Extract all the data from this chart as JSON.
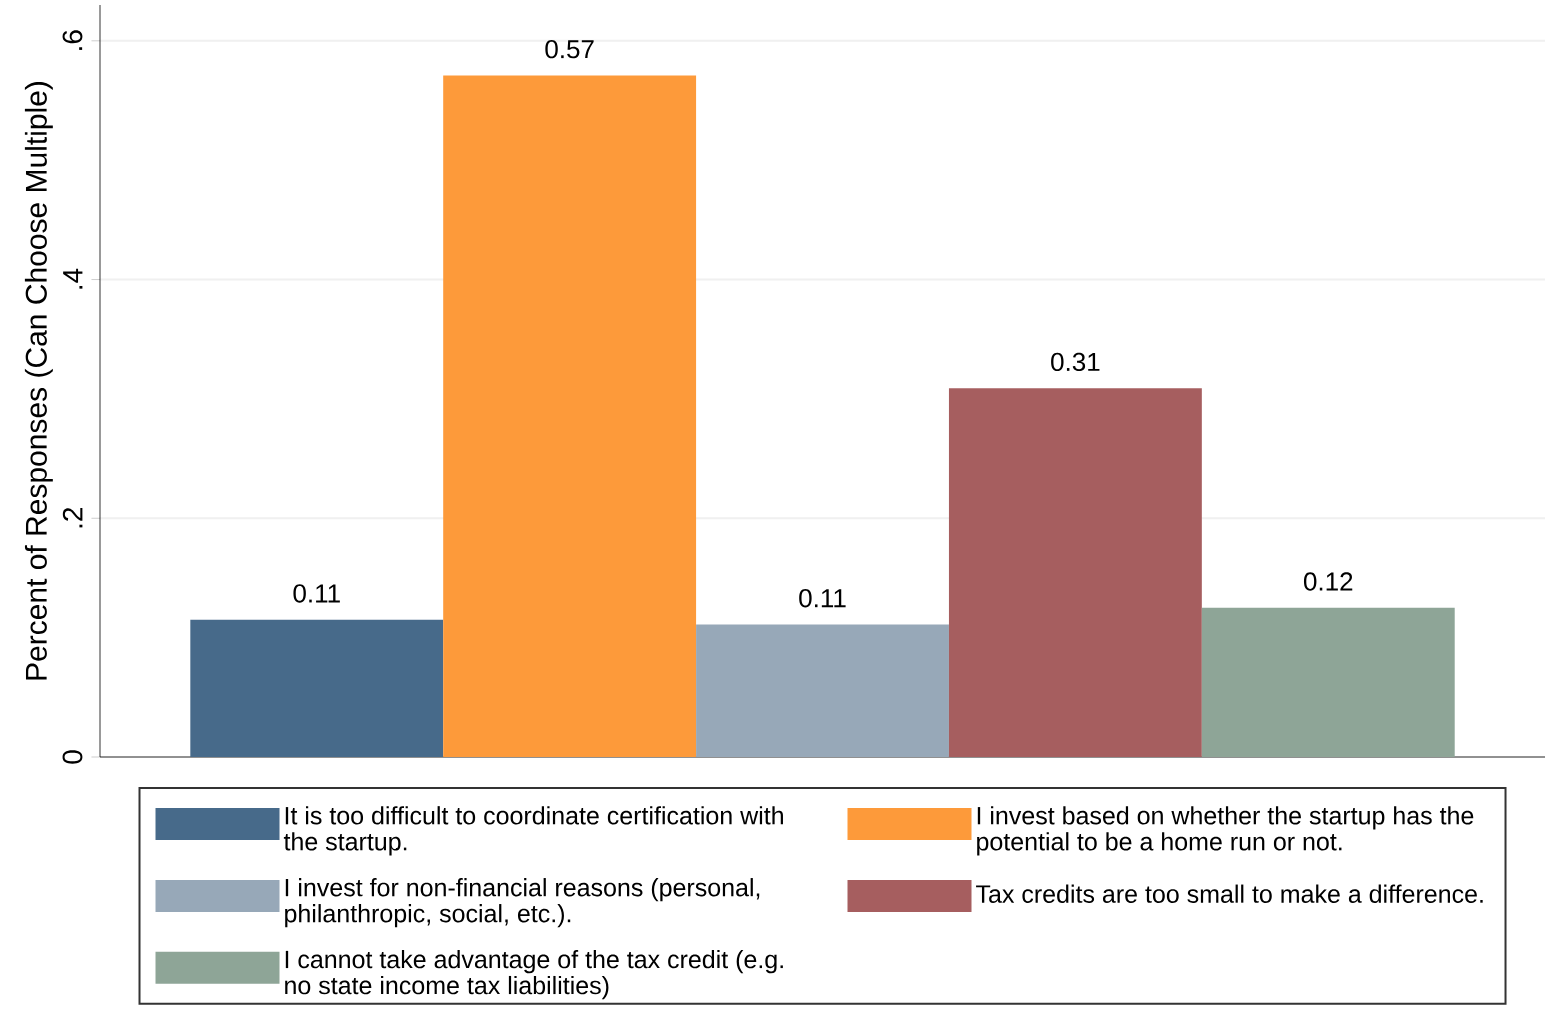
{
  "chart_data": {
    "type": "bar",
    "ylabel": "Percent of Responses (Can Choose Multiple)",
    "categories": [
      null
    ],
    "series": [
      {
        "name": "It is too difficult to coordinate certification with the startup.",
        "color": "#476a8a",
        "values": [
          0.115
        ],
        "value_labels": [
          "0.11"
        ]
      },
      {
        "name": "I invest based on whether the startup has the potential to be a home run or not.",
        "color": "#fd9a3a",
        "values": [
          0.571
        ],
        "value_labels": [
          "0.57"
        ]
      },
      {
        "name": "I invest for non-financial reasons (personal, philanthropic, social, etc.).",
        "color": "#97a8b8",
        "values": [
          0.111
        ],
        "value_labels": [
          "0.11"
        ]
      },
      {
        "name": "Tax credits are too small to make a difference.",
        "color": "#a65e5f",
        "values": [
          0.309
        ],
        "value_labels": [
          "0.31"
        ]
      },
      {
        "name": "I cannot take advantage of the tax credit (e.g. no state income tax liabilities)",
        "color": "#8ea597",
        "values": [
          0.125
        ],
        "value_labels": [
          "0.12"
        ]
      }
    ],
    "ylim": [
      0,
      0.63
    ],
    "yticks": [
      0,
      {
        "value": 0.2,
        "label": ".2"
      },
      {
        "value": 0.4,
        "label": ".4"
      },
      {
        "value": 0.6,
        "label": ".6"
      }
    ],
    "grid": "y",
    "legend": "bottom"
  }
}
